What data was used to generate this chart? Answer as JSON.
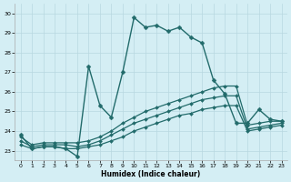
{
  "xlabel": "Humidex (Indice chaleur)",
  "ylabel": "",
  "background_color": "#d4eef4",
  "grid_color": "#b8d8e0",
  "line_color": "#226b6b",
  "xlim": [
    -0.5,
    23.5
  ],
  "ylim": [
    22.5,
    30.5
  ],
  "yticks": [
    23,
    24,
    25,
    26,
    27,
    28,
    29,
    30
  ],
  "xticks": [
    0,
    1,
    2,
    3,
    4,
    5,
    6,
    7,
    8,
    9,
    10,
    11,
    12,
    13,
    14,
    15,
    16,
    17,
    18,
    19,
    20,
    21,
    22,
    23
  ],
  "series": [
    {
      "x": [
        0,
        1,
        2,
        3,
        4,
        5,
        6,
        7,
        8,
        9,
        10,
        11,
        12,
        13,
        14,
        15,
        16,
        17,
        18,
        19,
        20,
        21,
        22,
        23
      ],
      "y": [
        23.8,
        23.1,
        23.2,
        23.2,
        23.1,
        22.7,
        27.3,
        25.3,
        24.7,
        27.0,
        29.8,
        29.3,
        29.4,
        29.1,
        29.3,
        28.8,
        28.5,
        26.6,
        25.9,
        24.4,
        24.4,
        25.1,
        24.6,
        24.5
      ],
      "markersize": 2.5,
      "linewidth": 1.0
    },
    {
      "x": [
        0,
        1,
        2,
        3,
        4,
        5,
        6,
        7,
        8,
        9,
        10,
        11,
        12,
        13,
        14,
        15,
        16,
        17,
        18,
        19,
        20,
        21,
        22,
        23
      ],
      "y": [
        23.7,
        23.3,
        23.4,
        23.4,
        23.4,
        23.4,
        23.5,
        23.7,
        24.0,
        24.4,
        24.7,
        25.0,
        25.2,
        25.4,
        25.6,
        25.8,
        26.0,
        26.2,
        26.3,
        26.3,
        24.3,
        24.4,
        24.5,
        24.5
      ],
      "markersize": 2.0,
      "linewidth": 0.9
    },
    {
      "x": [
        0,
        1,
        2,
        3,
        4,
        5,
        6,
        7,
        8,
        9,
        10,
        11,
        12,
        13,
        14,
        15,
        16,
        17,
        18,
        19,
        20,
        21,
        22,
        23
      ],
      "y": [
        23.5,
        23.2,
        23.3,
        23.3,
        23.3,
        23.2,
        23.3,
        23.5,
        23.8,
        24.1,
        24.4,
        24.6,
        24.8,
        25.0,
        25.2,
        25.4,
        25.6,
        25.7,
        25.8,
        25.8,
        24.1,
        24.2,
        24.3,
        24.4
      ],
      "markersize": 2.0,
      "linewidth": 0.9
    },
    {
      "x": [
        0,
        1,
        2,
        3,
        4,
        5,
        6,
        7,
        8,
        9,
        10,
        11,
        12,
        13,
        14,
        15,
        16,
        17,
        18,
        19,
        20,
        21,
        22,
        23
      ],
      "y": [
        23.3,
        23.1,
        23.2,
        23.2,
        23.1,
        23.1,
        23.2,
        23.3,
        23.5,
        23.7,
        24.0,
        24.2,
        24.4,
        24.6,
        24.8,
        24.9,
        25.1,
        25.2,
        25.3,
        25.3,
        24.0,
        24.1,
        24.2,
        24.3
      ],
      "markersize": 2.0,
      "linewidth": 0.9
    }
  ]
}
